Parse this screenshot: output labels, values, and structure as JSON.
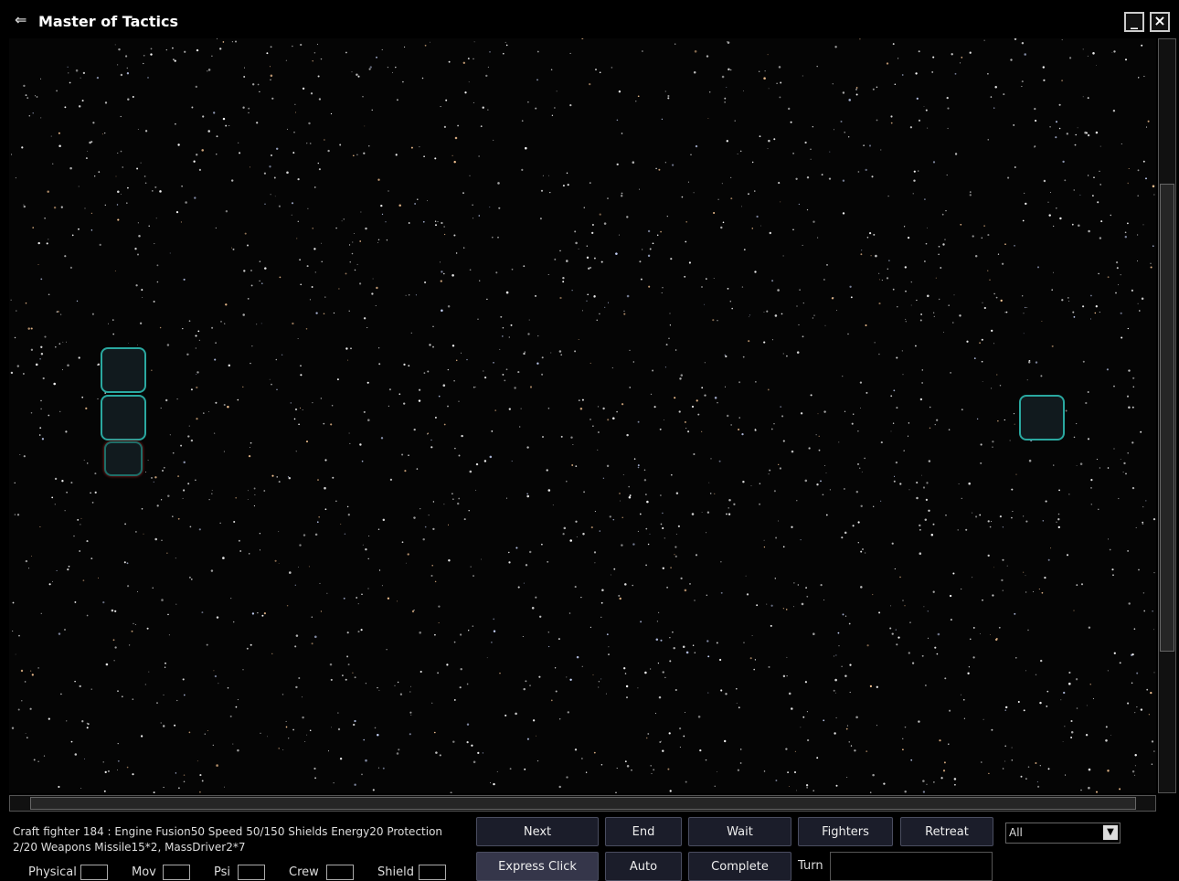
{
  "window": {
    "title": "Master of Tactics"
  },
  "info": {
    "text": "Craft fighter 184 : Engine Fusion50 Speed 50/150 Shields Energy20 Protection 2/20 Weapons Missile15*2, MassDriver2*7"
  },
  "stats": [
    "Physical",
    "Mov",
    "Psi",
    "Crew",
    "Shield"
  ],
  "buttons": {
    "row1": [
      "Next",
      "End",
      "Wait",
      "Fighters",
      "Retreat"
    ],
    "row2": [
      "Express Click",
      "Auto",
      "Complete"
    ]
  },
  "turn_label": "Turn",
  "filter": "All"
}
